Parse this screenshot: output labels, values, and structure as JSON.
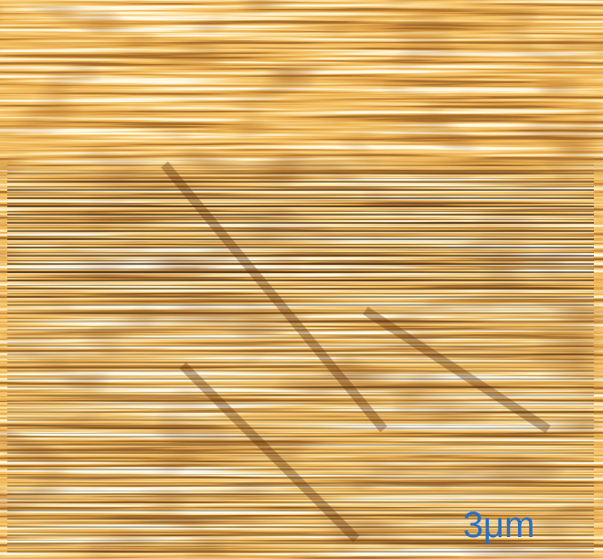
{
  "scale_bar": {
    "label": "3μm"
  }
}
